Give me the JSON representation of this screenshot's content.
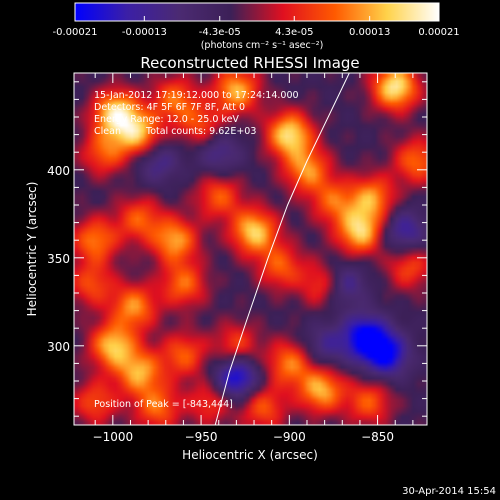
{
  "colorbar": {
    "tick_labels": [
      "-0.00021",
      "-0.00013",
      "-4.3e-05",
      "4.3e-05",
      "0.00013",
      "0.00021"
    ],
    "tick_values": [
      -0.00021,
      -0.00013,
      -4.3e-05,
      4.3e-05,
      0.00013,
      0.00021
    ],
    "range": [
      -0.00021,
      0.00021
    ],
    "units_label": "(photons cm⁻² s⁻¹ asec⁻²)"
  },
  "chart_data": {
    "type": "heatmap",
    "title": "Reconstructed RHESSI Image",
    "xlabel": "Heliocentric X (arcsec)",
    "ylabel": "Heliocentric Y (arcsec)",
    "xlim": [
      -1022,
      -822
    ],
    "ylim": [
      255,
      455
    ],
    "x_ticks": [
      -1000,
      -950,
      -900,
      -850
    ],
    "y_ticks": [
      300,
      350,
      400
    ],
    "x_tick_labels": [
      "−1000",
      "−950",
      "−900",
      "−850"
    ],
    "y_tick_labels": [
      "300",
      "350",
      "400"
    ],
    "peak_position": [
      -843,
      444
    ],
    "limb_curve": [
      [
        -942,
        255
      ],
      [
        -934,
        285
      ],
      [
        -924,
        315
      ],
      [
        -912,
        350
      ],
      [
        -901,
        380
      ],
      [
        -890,
        405
      ],
      [
        -878,
        430
      ],
      [
        -866,
        455
      ]
    ],
    "annotations": [
      "15-Jan-2012 17:19:12.000 to 17:24:14.000",
      "Detectors: 4F 5F 6F 7F 8F, Att 0",
      "Energy Range: 12.0 - 25.0 keV",
      "Clean",
      "Total counts: 9.62E+03",
      "Position of Peak = [-843,444]"
    ],
    "colormap": [
      "#0000ff",
      "#3b1fa6",
      "#4b2a72",
      "#3c2057",
      "#e01020",
      "#ff5a00",
      "#ffd24a",
      "#ffffff"
    ],
    "blobs": [
      {
        "x": -998,
        "y": 432,
        "v": 1.0
      },
      {
        "x": -985,
        "y": 420,
        "v": 0.8
      },
      {
        "x": -1005,
        "y": 410,
        "v": 0.55
      },
      {
        "x": -965,
        "y": 440,
        "v": 0.6
      },
      {
        "x": -950,
        "y": 425,
        "v": 0.5
      },
      {
        "x": -930,
        "y": 445,
        "v": 0.8
      },
      {
        "x": -900,
        "y": 420,
        "v": 0.95
      },
      {
        "x": -890,
        "y": 400,
        "v": 0.7
      },
      {
        "x": -875,
        "y": 382,
        "v": 0.55
      },
      {
        "x": -860,
        "y": 365,
        "v": 0.9
      },
      {
        "x": -853,
        "y": 384,
        "v": 0.7
      },
      {
        "x": -840,
        "y": 447,
        "v": 1.0
      },
      {
        "x": -828,
        "y": 405,
        "v": 0.6
      },
      {
        "x": -832,
        "y": 345,
        "v": 0.5
      },
      {
        "x": -920,
        "y": 365,
        "v": 0.9
      },
      {
        "x": -940,
        "y": 385,
        "v": 0.55
      },
      {
        "x": -965,
        "y": 360,
        "v": 0.75
      },
      {
        "x": -985,
        "y": 372,
        "v": 0.55
      },
      {
        "x": -1010,
        "y": 360,
        "v": 0.65
      },
      {
        "x": -1012,
        "y": 335,
        "v": 0.5
      },
      {
        "x": -988,
        "y": 322,
        "v": 0.7
      },
      {
        "x": -960,
        "y": 335,
        "v": 0.6
      },
      {
        "x": -905,
        "y": 345,
        "v": 0.55
      },
      {
        "x": -880,
        "y": 335,
        "v": 0.6
      },
      {
        "x": -1000,
        "y": 300,
        "v": 0.85
      },
      {
        "x": -985,
        "y": 285,
        "v": 0.75
      },
      {
        "x": -960,
        "y": 295,
        "v": 0.55
      },
      {
        "x": -930,
        "y": 300,
        "v": 0.5
      },
      {
        "x": -900,
        "y": 290,
        "v": 0.65
      },
      {
        "x": -882,
        "y": 275,
        "v": 0.8
      },
      {
        "x": -855,
        "y": 268,
        "v": 0.55
      },
      {
        "x": -945,
        "y": 268,
        "v": 0.45
      },
      {
        "x": -1010,
        "y": 268,
        "v": 0.5
      },
      {
        "x": -975,
        "y": 265,
        "v": 0.6
      },
      {
        "x": -915,
        "y": 265,
        "v": 0.55
      },
      {
        "x": -857,
        "y": 305,
        "v": -0.9
      },
      {
        "x": -845,
        "y": 295,
        "v": -0.8
      },
      {
        "x": -930,
        "y": 282,
        "v": -0.85
      },
      {
        "x": -870,
        "y": 335,
        "v": -0.6
      },
      {
        "x": -975,
        "y": 405,
        "v": -0.45
      },
      {
        "x": -940,
        "y": 410,
        "v": -0.45
      },
      {
        "x": -835,
        "y": 365,
        "v": -0.55
      },
      {
        "x": -880,
        "y": 300,
        "v": -0.4
      }
    ]
  },
  "footer": {
    "timestamp": "30-Apr-2014 15:54"
  }
}
